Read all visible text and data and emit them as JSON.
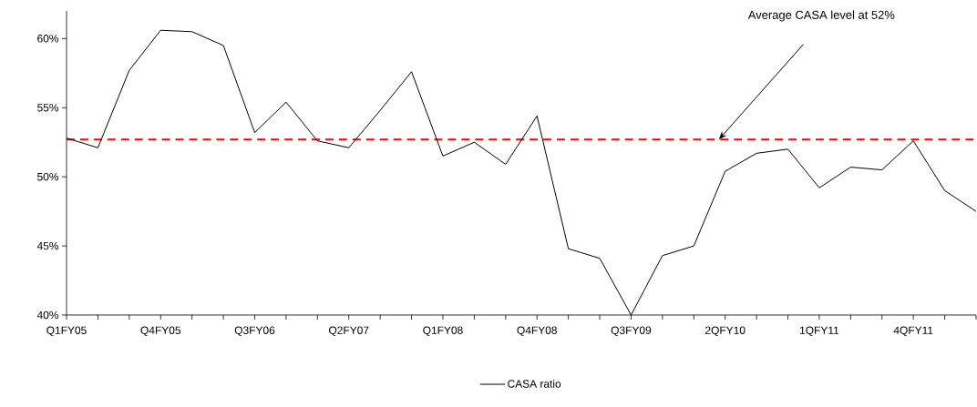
{
  "chart_data": {
    "type": "line",
    "categories": [
      "Q1FY05",
      null,
      null,
      "Q4FY05",
      null,
      null,
      "Q3FY06",
      null,
      null,
      "Q2FY07",
      null,
      null,
      "Q1FY08",
      null,
      null,
      "Q4FY08",
      null,
      null,
      "Q3FY09",
      null,
      null,
      "2QFY10",
      null,
      null,
      "1QFY11",
      null,
      null,
      "4QFY11",
      null,
      null
    ],
    "series": [
      {
        "name": "CASA ratio",
        "color": "#000000",
        "values": [
          52.8,
          52.1,
          57.7,
          60.6,
          60.5,
          59.5,
          53.2,
          55.4,
          52.6,
          52.1,
          54.8,
          57.6,
          51.5,
          52.5,
          50.9,
          54.4,
          44.8,
          44.1,
          40.0,
          44.3,
          45.0,
          50.4,
          51.7,
          52.0,
          49.2,
          50.7,
          50.5,
          52.6,
          49.0,
          47.5
        ]
      }
    ],
    "ylim": [
      40,
      62
    ],
    "yticks": [
      {
        "value": 40,
        "label": "40%"
      },
      {
        "value": 45,
        "label": "45%"
      },
      {
        "value": 50,
        "label": "50%"
      },
      {
        "value": 55,
        "label": "55%"
      },
      {
        "value": 60,
        "label": "60%"
      }
    ],
    "ref_lines": [
      {
        "axis": "y",
        "value": 52.7,
        "color": "#ff0000",
        "line_style": "dashed"
      }
    ],
    "annotations": [
      "Average CASA level at 52%"
    ],
    "legend": "bottom"
  }
}
